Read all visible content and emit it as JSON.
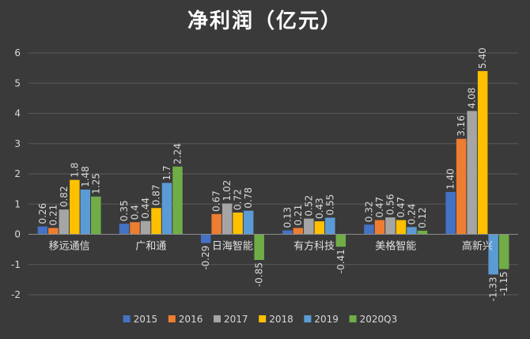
{
  "chart_data": {
    "type": "bar",
    "title": "净利润（亿元）",
    "xlabel": "",
    "ylabel": "",
    "ylim": [
      -2,
      6
    ],
    "yticks": [
      "-2",
      "-1",
      "0",
      "1",
      "2",
      "3",
      "4",
      "5",
      "6"
    ],
    "grid": true,
    "legend_position": "bottom",
    "categories": [
      "移远通信",
      "广和通",
      "日海智能",
      "有方科技",
      "美格智能",
      "高新兴"
    ],
    "series": [
      {
        "name": "2015",
        "color": "#4472c4",
        "values": [
          0.26,
          0.35,
          -0.29,
          0.13,
          0.32,
          1.4
        ],
        "labels": [
          "0.26",
          "0.35",
          "-0.29",
          "0.13",
          "0.32",
          "1.40"
        ]
      },
      {
        "name": "2016",
        "color": "#ed7d31",
        "values": [
          0.21,
          0.4,
          0.67,
          0.21,
          0.47,
          3.16
        ],
        "labels": [
          "0.21",
          "0.4",
          "0.67",
          "0.21",
          "0.47",
          "3.16"
        ]
      },
      {
        "name": "2017",
        "color": "#a5a5a5",
        "values": [
          0.82,
          0.44,
          1.02,
          0.52,
          0.56,
          4.08
        ],
        "labels": [
          "0.82",
          "0.44",
          "1.02",
          "0.52",
          "0.56",
          "4.08"
        ]
      },
      {
        "name": "2018",
        "color": "#ffc000",
        "values": [
          1.8,
          0.87,
          0.72,
          0.43,
          0.47,
          5.4
        ],
        "labels": [
          "1.8",
          "0.87",
          "0.72",
          "0.43",
          "0.47",
          "5.40"
        ]
      },
      {
        "name": "2019",
        "color": "#5b9bd5",
        "values": [
          1.48,
          1.7,
          0.78,
          0.55,
          0.24,
          -1.33
        ],
        "labels": [
          "1.48",
          "1.7",
          "0.78",
          "0.55",
          "0.24",
          "-1.33"
        ]
      },
      {
        "name": "2020Q3",
        "color": "#70ad47",
        "values": [
          1.25,
          2.24,
          -0.85,
          -0.41,
          0.12,
          -1.15
        ],
        "labels": [
          "1.25",
          "2.24",
          "-0.85",
          "-0.41",
          "0.12",
          "-1.15"
        ]
      }
    ]
  }
}
